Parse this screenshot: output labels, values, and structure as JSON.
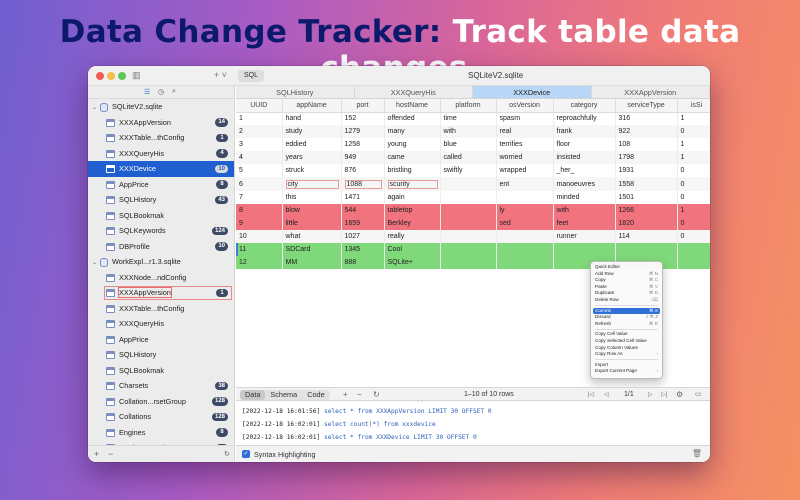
{
  "headline": {
    "part1": "Data Change Tracker:",
    "part2": "Track table data changes."
  },
  "window": {
    "title": "SQLiteV2.sqlite",
    "sql_button": "SQL"
  },
  "sidebar": {
    "databases": [
      {
        "name": "SQLiteV2.sqlite",
        "tables": [
          {
            "label": "XXXAppVersion",
            "count": "14"
          },
          {
            "label": "XXXTable...thConfig",
            "count": "1"
          },
          {
            "label": "XXXQueryHis",
            "count": "4"
          },
          {
            "label": "XXXDevice",
            "count": "10"
          },
          {
            "label": "AppPrice",
            "count": "8"
          },
          {
            "label": "SQLHistory",
            "count": "43"
          },
          {
            "label": "SQLBookmak",
            "count": ""
          },
          {
            "label": "SQLKeywords",
            "count": "124"
          },
          {
            "label": "DBProfile",
            "count": "10"
          }
        ]
      },
      {
        "name": "WorkExpl...r1.3.sqlite",
        "tables": [
          {
            "label": "XXXNode...ndConfig",
            "count": ""
          },
          {
            "label": "XXXAppVersion",
            "count": "1"
          },
          {
            "label": "XXXTable...thConfig",
            "count": ""
          },
          {
            "label": "XXXQueryHis",
            "count": ""
          },
          {
            "label": "AppPrice",
            "count": ""
          },
          {
            "label": "SQLHistory",
            "count": ""
          },
          {
            "label": "SQLBookmak",
            "count": ""
          },
          {
            "label": "Charsets",
            "count": "38"
          },
          {
            "label": "Collation...rsetGroup",
            "count": "128"
          },
          {
            "label": "Collations",
            "count": "128"
          },
          {
            "label": "Engines",
            "count": "8"
          },
          {
            "label": "Product_SQLiteSetup",
            "count": "1"
          }
        ]
      }
    ]
  },
  "tabs": [
    {
      "label": "SQLHistory"
    },
    {
      "label": "XXXQueryHis"
    },
    {
      "label": "XXXDevice"
    },
    {
      "label": "XXXAppVersion"
    }
  ],
  "table": {
    "columns": [
      "UUID",
      "appName",
      "port",
      "hostName",
      "platform",
      "osVersion",
      "category",
      "serviceType",
      "isSi"
    ],
    "rows": [
      {
        "cells": [
          "1",
          "hand",
          "152",
          "offended",
          "time",
          "spasm",
          "reproachfully",
          "316",
          "1"
        ],
        "state": ""
      },
      {
        "cells": [
          "2",
          "study",
          "1279",
          "many",
          "with",
          "real",
          "frank",
          "922",
          "0"
        ],
        "state": ""
      },
      {
        "cells": [
          "3",
          "eddied",
          "1258",
          "young",
          "blue",
          "terrifies",
          "floor",
          "108",
          "1"
        ],
        "state": ""
      },
      {
        "cells": [
          "4",
          "years",
          "949",
          "came",
          "called",
          "worried",
          "insisted",
          "1798",
          "1"
        ],
        "state": ""
      },
      {
        "cells": [
          "5",
          "struck",
          "876",
          "bristling",
          "swiftly",
          "wrapped",
          "_her_",
          "1931",
          "0"
        ],
        "state": ""
      },
      {
        "cells": [
          "6",
          "city",
          "1088",
          "scurity",
          "",
          "ent",
          "manoeuvres",
          "1558",
          "0"
        ],
        "state": "edited"
      },
      {
        "cells": [
          "7",
          "this",
          "1471",
          "again",
          "",
          "",
          "minded",
          "1501",
          "0"
        ],
        "state": ""
      },
      {
        "cells": [
          "8",
          "blow",
          "544",
          "tabletop",
          "",
          "ly",
          "with",
          "1266",
          "1"
        ],
        "state": "red"
      },
      {
        "cells": [
          "9",
          "little",
          "1659",
          "Berkley",
          "",
          "sed",
          "feet",
          "1820",
          "0"
        ],
        "state": "red"
      },
      {
        "cells": [
          "10",
          "what",
          "1027",
          "really",
          "",
          "",
          "runner",
          "114",
          "0"
        ],
        "state": ""
      },
      {
        "cells": [
          "11",
          "SDCard",
          "1345",
          "Cool",
          "",
          "",
          "",
          "",
          ""
        ],
        "state": "green sel"
      },
      {
        "cells": [
          "12",
          "MM",
          "888",
          "SQLite+",
          "",
          "",
          "",
          "",
          ""
        ],
        "state": "green"
      }
    ]
  },
  "context_menu": {
    "items": [
      {
        "label": "Quick Editor",
        "shortcut": "",
        "sep_after": false
      },
      {
        "label": "Add Row",
        "shortcut": "⌘ N",
        "sep_after": false
      },
      {
        "label": "Copy",
        "shortcut": "⌘ C",
        "sep_after": false
      },
      {
        "label": "Paste",
        "shortcut": "⌘ V",
        "sep_after": false
      },
      {
        "label": "Duplicate",
        "shortcut": "⌘ D",
        "sep_after": false
      },
      {
        "label": "Delete Row",
        "shortcut": "⌫",
        "sep_after": true
      },
      {
        "label": "Commit",
        "shortcut": "⌘ S",
        "sep_after": false,
        "highlight": true
      },
      {
        "label": "Discard",
        "shortcut": "⇧⌘ Z",
        "sep_after": false
      },
      {
        "label": "Refresh",
        "shortcut": "⌘ R",
        "sep_after": true
      },
      {
        "label": "Copy Cell Value",
        "shortcut": "",
        "sep_after": false
      },
      {
        "label": "Copy Selected Cell Value",
        "shortcut": "",
        "sep_after": false
      },
      {
        "label": "Copy Column Values",
        "shortcut": "",
        "sep_after": false
      },
      {
        "label": "Copy Row As",
        "shortcut": "›",
        "sep_after": true
      },
      {
        "label": "Import",
        "shortcut": "",
        "sep_after": false
      },
      {
        "label": "Export Current Page",
        "shortcut": "›",
        "sep_after": false
      }
    ]
  },
  "bottom_toolbar": {
    "seg_data": "Data",
    "seg_schema": "Schema",
    "seg_code": "Code",
    "rows_info": "1–10 of 10 rows",
    "page": "1/1"
  },
  "log": [
    {
      "ts": "[2022-12-18 16:01:56]",
      "pre": "select count(*) from XXXAppVersion",
      "kw": "",
      "post": ""
    },
    {
      "ts": "[2022-12-18 16:01:56]",
      "pre": "select * from XXXAppVersion  LIMIT 30 OFFSET 0",
      "kw": "",
      "post": ""
    },
    {
      "ts": "[2022-12-18 16:02:01]",
      "pre": "select count(*) from  xxxdevice",
      "kw": "",
      "post": ""
    },
    {
      "ts": "[2022-12-18 16:02:01]",
      "pre": "select * from XXXDevice  LIMIT 30 OFFSET 0",
      "kw": "",
      "post": ""
    }
  ],
  "status": {
    "syntax_label": "Syntax Highlighting"
  }
}
